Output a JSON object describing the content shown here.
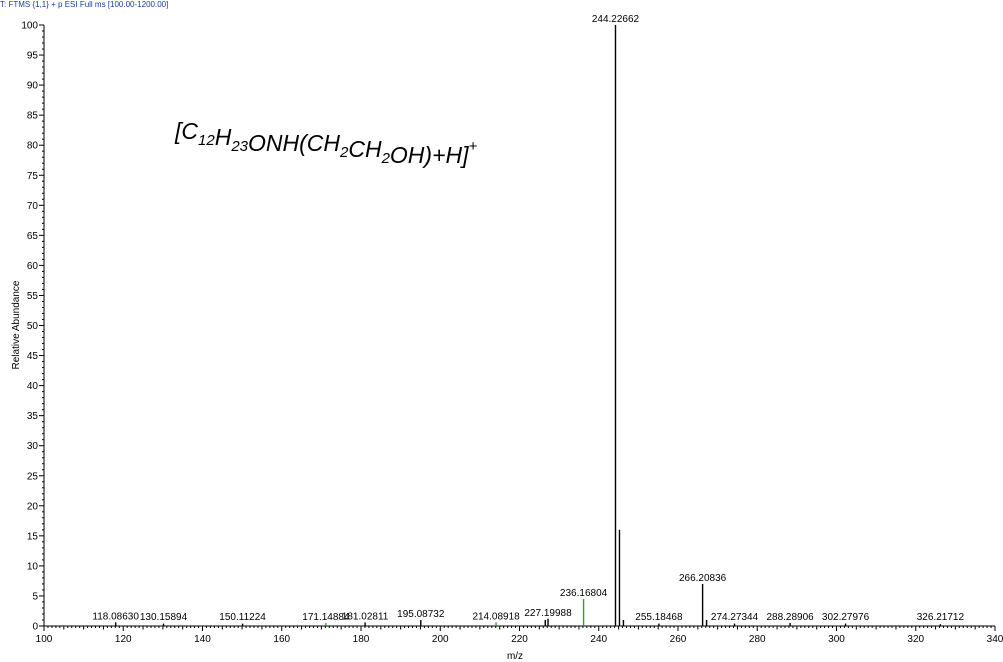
{
  "header": {
    "scan_filter": "T: FTMS {1,1}  + p ESI Full ms [100.00-1200.00]"
  },
  "chart_data": {
    "type": "bar",
    "subtype": "mass-spectrum-stick",
    "xlabel": "m/z",
    "ylabel": "Relative Abundance",
    "xlim": [
      100,
      340
    ],
    "ylim": [
      0,
      100
    ],
    "x_ticks": [
      "100",
      "120",
      "140",
      "160",
      "180",
      "200",
      "220",
      "240",
      "260",
      "280",
      "300",
      "320",
      "340"
    ],
    "y_ticks": [
      "0",
      "5",
      "10",
      "15",
      "20",
      "25",
      "30",
      "35",
      "40",
      "45",
      "50",
      "55",
      "60",
      "65",
      "70",
      "75",
      "80",
      "85",
      "90",
      "95",
      "100"
    ],
    "grid": false,
    "annotation": {
      "formula_parts": [
        {
          "t": "[C",
          "sub": false
        },
        {
          "t": "12",
          "sub": true
        },
        {
          "t": "H",
          "sub": false
        },
        {
          "t": "23",
          "sub": true
        },
        {
          "t": "ONH(CH",
          "sub": false
        },
        {
          "t": "2",
          "sub": true
        },
        {
          "t": "CH",
          "sub": false
        },
        {
          "t": "2",
          "sub": true
        },
        {
          "t": "OH)+H]",
          "sub": false
        }
      ],
      "charge": "+"
    },
    "peaks": [
      {
        "mz": 118.0863,
        "intensity": 0.6,
        "label": "118.08630"
      },
      {
        "mz": 130.15894,
        "intensity": 0.4,
        "label": "130.15894"
      },
      {
        "mz": 150.11224,
        "intensity": 0.4,
        "label": "150.11224"
      },
      {
        "mz": 171.14884,
        "intensity": 0.5,
        "label": "171.14884",
        "color": "#2e9e2e"
      },
      {
        "mz": 181.02811,
        "intensity": 0.6,
        "label": "181.02811"
      },
      {
        "mz": 195.08732,
        "intensity": 1.0,
        "label": "195.08732"
      },
      {
        "mz": 214.08918,
        "intensity": 0.6,
        "label": "214.08918",
        "color": "#2e9e2e"
      },
      {
        "mz": 226.5,
        "intensity": 1.0,
        "label": ""
      },
      {
        "mz": 227.19988,
        "intensity": 1.2,
        "label": "227.19988"
      },
      {
        "mz": 236.16804,
        "intensity": 4.5,
        "label": "236.16804",
        "color": "#2e9e2e"
      },
      {
        "mz": 244.22662,
        "intensity": 100,
        "label": "244.22662"
      },
      {
        "mz": 245.23,
        "intensity": 16,
        "label": ""
      },
      {
        "mz": 246.23,
        "intensity": 1.0,
        "label": ""
      },
      {
        "mz": 255.18468,
        "intensity": 0.4,
        "label": "255.18468"
      },
      {
        "mz": 266.20836,
        "intensity": 7,
        "label": "266.20836"
      },
      {
        "mz": 267.21,
        "intensity": 1.0,
        "label": ""
      },
      {
        "mz": 274.27344,
        "intensity": 0.4,
        "label": "274.27344"
      },
      {
        "mz": 288.28906,
        "intensity": 0.5,
        "label": "288.28906"
      },
      {
        "mz": 302.27976,
        "intensity": 0.4,
        "label": "302.27976"
      },
      {
        "mz": 326.21712,
        "intensity": 0.3,
        "label": "326.21712"
      }
    ],
    "colors": {
      "default": "#000000",
      "highlight": "#2e9e2e",
      "header": "#1a3aa8"
    }
  }
}
